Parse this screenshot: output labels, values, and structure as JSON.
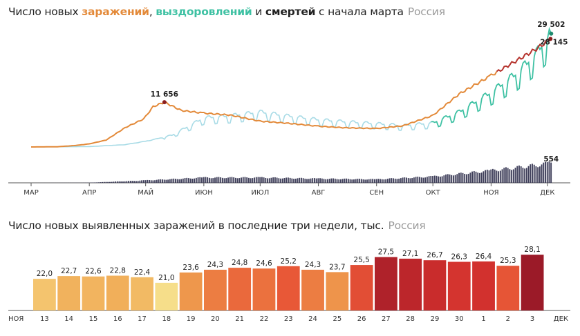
{
  "region": "Россия",
  "top": {
    "title_pre": "Число новых ",
    "title_infections": "заражений",
    "title_comma": ", ",
    "title_recoveries": "выздоровлений",
    "title_and": " и ",
    "title_deaths": "смертей",
    "title_post": " с начала марта",
    "months": [
      "МАР",
      "АПР",
      "МАЙ",
      "ИЮН",
      "ИЮЛ",
      "АВГ",
      "СЕН",
      "ОКТ",
      "НОЯ",
      "ДЕК"
    ],
    "annotations": {
      "peak_may": "11 656",
      "recoveries_last": "29 502",
      "infections_last": "28 145",
      "deaths_last": "554"
    },
    "colors": {
      "infections": "#e38a3a",
      "recoveries": "#3ec1a3",
      "recoveries_early": "#a8dbe6",
      "deaths": "#3f3f5a",
      "infections_end": "#b5322c"
    }
  },
  "chart_data": [
    {
      "type": "line",
      "series": [
        {
          "name": "заражений",
          "x": [
            "2020-03-01",
            "2020-03-15",
            "2020-03-25",
            "2020-04-01",
            "2020-04-10",
            "2020-04-20",
            "2020-04-30",
            "2020-05-05",
            "2020-05-11",
            "2020-05-20",
            "2020-06-01",
            "2020-06-15",
            "2020-07-01",
            "2020-07-15",
            "2020-08-01",
            "2020-08-15",
            "2020-09-01",
            "2020-09-15",
            "2020-10-01",
            "2020-10-15",
            "2020-11-01",
            "2020-11-15",
            "2020-11-25",
            "2020-12-03"
          ],
          "values": [
            0,
            50,
            400,
            800,
            1800,
            5000,
            7300,
            10500,
            11656,
            9500,
            8800,
            8300,
            6700,
            6200,
            5400,
            5000,
            4800,
            5500,
            8200,
            13800,
            18600,
            22600,
            25500,
            28145
          ]
        },
        {
          "name": "выздоровлений",
          "x": [
            "2020-03-01",
            "2020-04-01",
            "2020-04-20",
            "2020-05-01",
            "2020-05-15",
            "2020-06-01",
            "2020-06-15",
            "2020-07-01",
            "2020-07-15",
            "2020-08-01",
            "2020-08-15",
            "2020-09-01",
            "2020-09-15",
            "2020-10-01",
            "2020-10-15",
            "2020-11-01",
            "2020-11-15",
            "2020-11-25",
            "2020-12-03"
          ],
          "values": [
            0,
            100,
            600,
            1500,
            3000,
            7500,
            8000,
            9000,
            8000,
            7000,
            6500,
            6000,
            5500,
            6200,
            9000,
            14000,
            19000,
            24000,
            29502
          ]
        },
        {
          "name": "смертей",
          "x": [
            "2020-03-01",
            "2020-04-01",
            "2020-05-01",
            "2020-06-01",
            "2020-07-01",
            "2020-08-01",
            "2020-09-01",
            "2020-10-01",
            "2020-11-01",
            "2020-12-03"
          ],
          "values": [
            0,
            5,
            70,
            150,
            150,
            120,
            100,
            180,
            350,
            554
          ]
        }
      ],
      "xlabel": "",
      "ylabel": "",
      "x_ticks": [
        "МАР",
        "АПР",
        "МАЙ",
        "ИЮН",
        "ИЮЛ",
        "АВГ",
        "СЕН",
        "ОКТ",
        "НОЯ",
        "ДЕК"
      ]
    },
    {
      "type": "bar",
      "title": "Число новых выявленных заражений в последние три недели, тыс.",
      "categories": [
        "13",
        "14",
        "15",
        "16",
        "17",
        "18",
        "19",
        "20",
        "21",
        "22",
        "23",
        "24",
        "25",
        "26",
        "27",
        "28",
        "29",
        "30",
        "1",
        "2",
        "3"
      ],
      "values": [
        22.0,
        22.7,
        22.6,
        22.8,
        22.4,
        21.0,
        23.6,
        24.3,
        24.8,
        24.6,
        25.2,
        24.3,
        23.7,
        25.5,
        27.5,
        27.1,
        26.7,
        26.3,
        26.4,
        25.3,
        28.1
      ],
      "value_labels": [
        "22,0",
        "22,7",
        "22,6",
        "22,8",
        "22,4",
        "21,0",
        "23,6",
        "24,3",
        "24,8",
        "24,6",
        "25,2",
        "24,3",
        "23,7",
        "25,5",
        "27,5",
        "27,1",
        "26,7",
        "26,3",
        "26,4",
        "25,3",
        "28,1"
      ],
      "weekend": [
        false,
        true,
        true,
        false,
        false,
        false,
        false,
        false,
        true,
        true,
        false,
        false,
        false,
        false,
        false,
        true,
        true,
        false,
        false,
        false,
        false
      ],
      "month_left": "НОЯ",
      "month_right": "ДЕК",
      "ylim": [
        0,
        29
      ]
    }
  ]
}
